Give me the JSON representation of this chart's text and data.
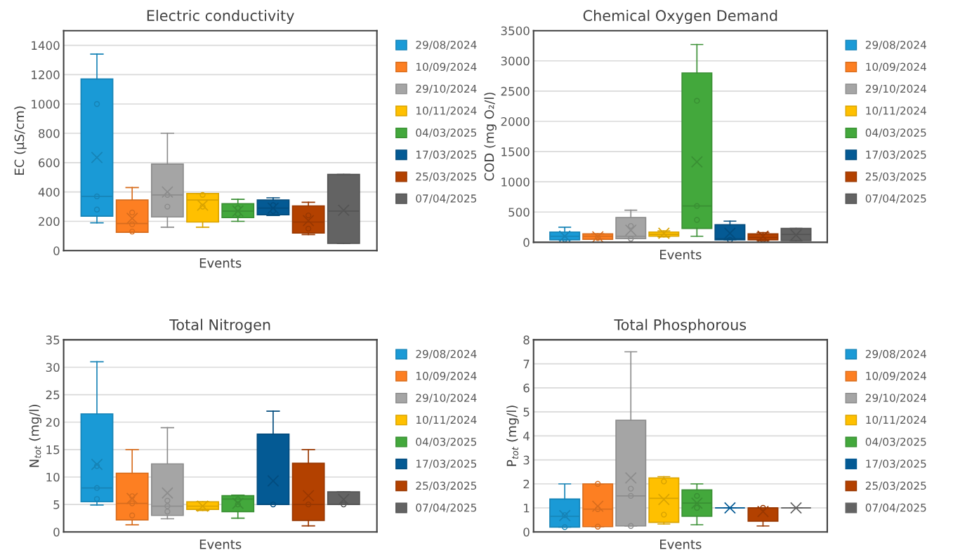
{
  "chart_data": [
    {
      "type": "box",
      "title": "Electric conductivity",
      "xlabel": "Events",
      "ylabel": "EC (µS/cm)",
      "categories": [
        null
      ],
      "ylim": [
        0,
        1500
      ],
      "yticks": [
        0,
        200,
        400,
        600,
        800,
        1000,
        1200,
        1400
      ],
      "grid": "y",
      "legend": "right",
      "series": [
        {
          "name": "29/08/2024",
          "color": "#1a9ad6",
          "boxes": [
            {
              "low": 190,
              "q1": 235,
              "median": 370,
              "q3": 1170,
              "high": 1340,
              "mean": 635,
              "outliers": [
                1000,
                370,
                280
              ]
            }
          ]
        },
        {
          "name": "10/09/2024",
          "color": "#fd7f22",
          "boxes": [
            {
              "low": 125,
              "q1": 125,
              "median": 185,
              "q3": 345,
              "high": 430,
              "mean": 220,
              "outliers": [
                260,
                180,
                130
              ]
            }
          ]
        },
        {
          "name": "29/10/2024",
          "color": "#a5a5a5",
          "boxes": [
            {
              "low": 160,
              "q1": 230,
              "median": 380,
              "q3": 590,
              "high": 800,
              "mean": 400,
              "outliers": [
                380,
                300
              ]
            }
          ]
        },
        {
          "name": "10/11/2024",
          "color": "#ffc000",
          "boxes": [
            {
              "low": 160,
              "q1": 195,
              "median": 345,
              "q3": 390,
              "high": 390,
              "mean": 310,
              "outliers": [
                380,
                300
              ]
            }
          ]
        },
        {
          "name": "04/03/2025",
          "color": "#43a83c",
          "boxes": [
            {
              "low": 200,
              "q1": 225,
              "median": 270,
              "q3": 320,
              "high": 350,
              "mean": 270,
              "outliers": [
                290,
                250
              ]
            }
          ]
        },
        {
          "name": "17/03/2025",
          "color": "#045a94",
          "boxes": [
            {
              "low": 240,
              "q1": 245,
              "median": 290,
              "q3": 345,
              "high": 360,
              "mean": 290,
              "outliers": [
                310,
                270
              ]
            }
          ]
        },
        {
          "name": "25/03/2025",
          "color": "#b34100",
          "boxes": [
            {
              "low": 110,
              "q1": 120,
              "median": 195,
              "q3": 305,
              "high": 330,
              "mean": 205,
              "outliers": [
                240,
                150
              ]
            }
          ]
        },
        {
          "name": "07/04/2025",
          "color": "#636363",
          "boxes": [
            {
              "low": 50,
              "q1": 50,
              "median": 270,
              "q3": 520,
              "high": 520,
              "mean": 275
            }
          ]
        }
      ]
    },
    {
      "type": "box",
      "title": "Chemical Oxygen Demand",
      "xlabel": "Events",
      "ylabel": "COD (mg O₂/l)",
      "categories": [
        null
      ],
      "ylim": [
        0,
        3500
      ],
      "yticks": [
        0,
        500,
        1000,
        1500,
        2000,
        2500,
        3000,
        3500
      ],
      "grid": "y",
      "legend": "right",
      "series": [
        {
          "name": "29/08/2024",
          "color": "#1a9ad6",
          "boxes": [
            {
              "low": 40,
              "q1": 40,
              "median": 100,
              "q3": 170,
              "high": 250,
              "mean": 100,
              "outliers": [
                50
              ]
            }
          ]
        },
        {
          "name": "10/09/2024",
          "color": "#fd7f22",
          "boxes": [
            {
              "low": 50,
              "q1": 50,
              "median": 100,
              "q3": 140,
              "high": 140,
              "mean": 90,
              "outliers": [
                70
              ]
            }
          ]
        },
        {
          "name": "29/10/2024",
          "color": "#a5a5a5",
          "boxes": [
            {
              "low": 60,
              "q1": 60,
              "median": 100,
              "q3": 410,
              "high": 530,
              "mean": 200,
              "outliers": [
                270,
                60
              ]
            }
          ]
        },
        {
          "name": "10/11/2024",
          "color": "#ffc000",
          "boxes": [
            {
              "low": 90,
              "q1": 100,
              "median": 130,
              "q3": 170,
              "high": 190,
              "mean": 150
            }
          ]
        },
        {
          "name": "04/03/2025",
          "color": "#43a83c",
          "boxes": [
            {
              "low": 100,
              "q1": 230,
              "median": 600,
              "q3": 2800,
              "high": 3270,
              "mean": 1330,
              "outliers": [
                2340,
                600,
                370
              ]
            }
          ]
        },
        {
          "name": "17/03/2025",
          "color": "#045a94",
          "boxes": [
            {
              "low": 40,
              "q1": 40,
              "median": 60,
              "q3": 290,
              "high": 350,
              "mean": 150,
              "outliers": [
                40
              ]
            }
          ]
        },
        {
          "name": "25/03/2025",
          "color": "#b34100",
          "boxes": [
            {
              "low": 30,
              "q1": 40,
              "median": 80,
              "q3": 140,
              "high": 160,
              "mean": 100,
              "outliers": [
                40
              ]
            }
          ]
        },
        {
          "name": "07/04/2025",
          "color": "#636363",
          "boxes": [
            {
              "low": 30,
              "q1": 30,
              "median": 130,
              "q3": 230,
              "high": 230,
              "mean": 120
            }
          ]
        }
      ]
    },
    {
      "type": "box",
      "title": "Total Nitrogen",
      "xlabel": "Events",
      "ylabel": "N$_{tot}$ (mg/l)",
      "categories": [
        null
      ],
      "ylim": [
        0,
        35
      ],
      "yticks": [
        0,
        5,
        10,
        15,
        20,
        25,
        30,
        35
      ],
      "grid": "y",
      "legend": "right",
      "series": [
        {
          "name": "29/08/2024",
          "color": "#1a9ad6",
          "boxes": [
            {
              "low": 4.9,
              "q1": 5.5,
              "median": 8,
              "q3": 21.5,
              "high": 31,
              "mean": 12.3,
              "outliers": [
                12,
                8,
                6
              ]
            }
          ]
        },
        {
          "name": "10/09/2024",
          "color": "#fd7f22",
          "boxes": [
            {
              "low": 1.3,
              "q1": 2.2,
              "median": 5.2,
              "q3": 10.7,
              "high": 15,
              "mean": 6.1,
              "outliers": [
                6.5,
                5.2,
                3
              ]
            }
          ]
        },
        {
          "name": "29/10/2024",
          "color": "#a5a5a5",
          "boxes": [
            {
              "low": 2.4,
              "q1": 3,
              "median": 4.7,
              "q3": 12.4,
              "high": 19,
              "mean": 7.1,
              "outliers": [
                5.7,
                4.7,
                3.7
              ]
            }
          ]
        },
        {
          "name": "10/11/2024",
          "color": "#ffc000",
          "boxes": [
            {
              "low": 3.9,
              "q1": 4.1,
              "median": 4.7,
              "q3": 5.5,
              "high": 5.5,
              "mean": 4.7
            }
          ]
        },
        {
          "name": "04/03/2025",
          "color": "#43a83c",
          "boxes": [
            {
              "low": 2.5,
              "q1": 3.7,
              "median": 6,
              "q3": 6.6,
              "high": 6.7,
              "mean": 5.2,
              "outliers": [
                5.9,
                5
              ]
            }
          ]
        },
        {
          "name": "17/03/2025",
          "color": "#045a94",
          "boxes": [
            {
              "low": 5,
              "q1": 5,
              "median": 5,
              "q3": 17.8,
              "high": 22,
              "mean": 9.3,
              "outliers": [
                5
              ]
            }
          ]
        },
        {
          "name": "25/03/2025",
          "color": "#b34100",
          "boxes": [
            {
              "low": 1.1,
              "q1": 2.1,
              "median": 5,
              "q3": 12.5,
              "high": 15,
              "mean": 6.6,
              "outliers": [
                5
              ]
            }
          ]
        },
        {
          "name": "07/04/2025",
          "color": "#636363",
          "boxes": [
            {
              "low": 5,
              "q1": 5,
              "median": 5,
              "q3": 7.3,
              "high": 7.3,
              "mean": 5.9,
              "outliers": [
                5
              ]
            }
          ]
        }
      ]
    },
    {
      "type": "box",
      "title": "Total Phosphorous",
      "xlabel": "Events",
      "ylabel": "P$_{tot}$ (mg/l)",
      "categories": [
        null
      ],
      "ylim": [
        0,
        8
      ],
      "yticks": [
        0,
        1,
        2,
        3,
        4,
        5,
        6,
        7,
        8
      ],
      "grid": "y",
      "legend": "right",
      "series": [
        {
          "name": "29/08/2024",
          "color": "#1a9ad6",
          "boxes": [
            {
              "low": 0.2,
              "q1": 0.2,
              "median": 0.65,
              "q3": 1.37,
              "high": 2,
              "mean": 0.68,
              "outliers": [
                0.7,
                0.2
              ]
            }
          ]
        },
        {
          "name": "10/09/2024",
          "color": "#fd7f22",
          "boxes": [
            {
              "low": 0.22,
              "q1": 0.22,
              "median": 0.95,
              "q3": 2,
              "high": 2,
              "mean": 1.07,
              "outliers": [
                2,
                0.95,
                0.22
              ]
            }
          ]
        },
        {
          "name": "29/10/2024",
          "color": "#a5a5a5",
          "boxes": [
            {
              "low": 0.25,
              "q1": 0.25,
              "median": 1.5,
              "q3": 4.65,
              "high": 7.5,
              "mean": 2.25,
              "outliers": [
                1.8,
                1.5,
                0.25
              ]
            }
          ]
        },
        {
          "name": "10/11/2024",
          "color": "#ffc000",
          "boxes": [
            {
              "low": 0.33,
              "q1": 0.4,
              "median": 1.4,
              "q3": 2.25,
              "high": 2.3,
              "mean": 1.35,
              "outliers": [
                2.1,
                0.72
              ]
            }
          ]
        },
        {
          "name": "04/03/2025",
          "color": "#43a83c",
          "boxes": [
            {
              "low": 0.3,
              "q1": 0.65,
              "median": 1.2,
              "q3": 1.75,
              "high": 2,
              "mean": 1.2,
              "outliers": [
                1.5,
                1.0
              ]
            }
          ]
        },
        {
          "name": "17/03/2025",
          "color": "#045a94",
          "boxes": [
            {
              "low": 1,
              "q1": 1,
              "median": 1,
              "q3": 1,
              "high": 1,
              "mean": 1
            }
          ]
        },
        {
          "name": "25/03/2025",
          "color": "#b34100",
          "boxes": [
            {
              "low": 0.25,
              "q1": 0.45,
              "median": 1,
              "q3": 1,
              "high": 1,
              "mean": 0.85,
              "outliers": [
                1
              ]
            }
          ]
        },
        {
          "name": "07/04/2025",
          "color": "#636363",
          "boxes": [
            {
              "low": 1,
              "q1": 1,
              "median": 1,
              "q3": 1,
              "high": 1,
              "mean": 1
            }
          ]
        }
      ]
    }
  ]
}
